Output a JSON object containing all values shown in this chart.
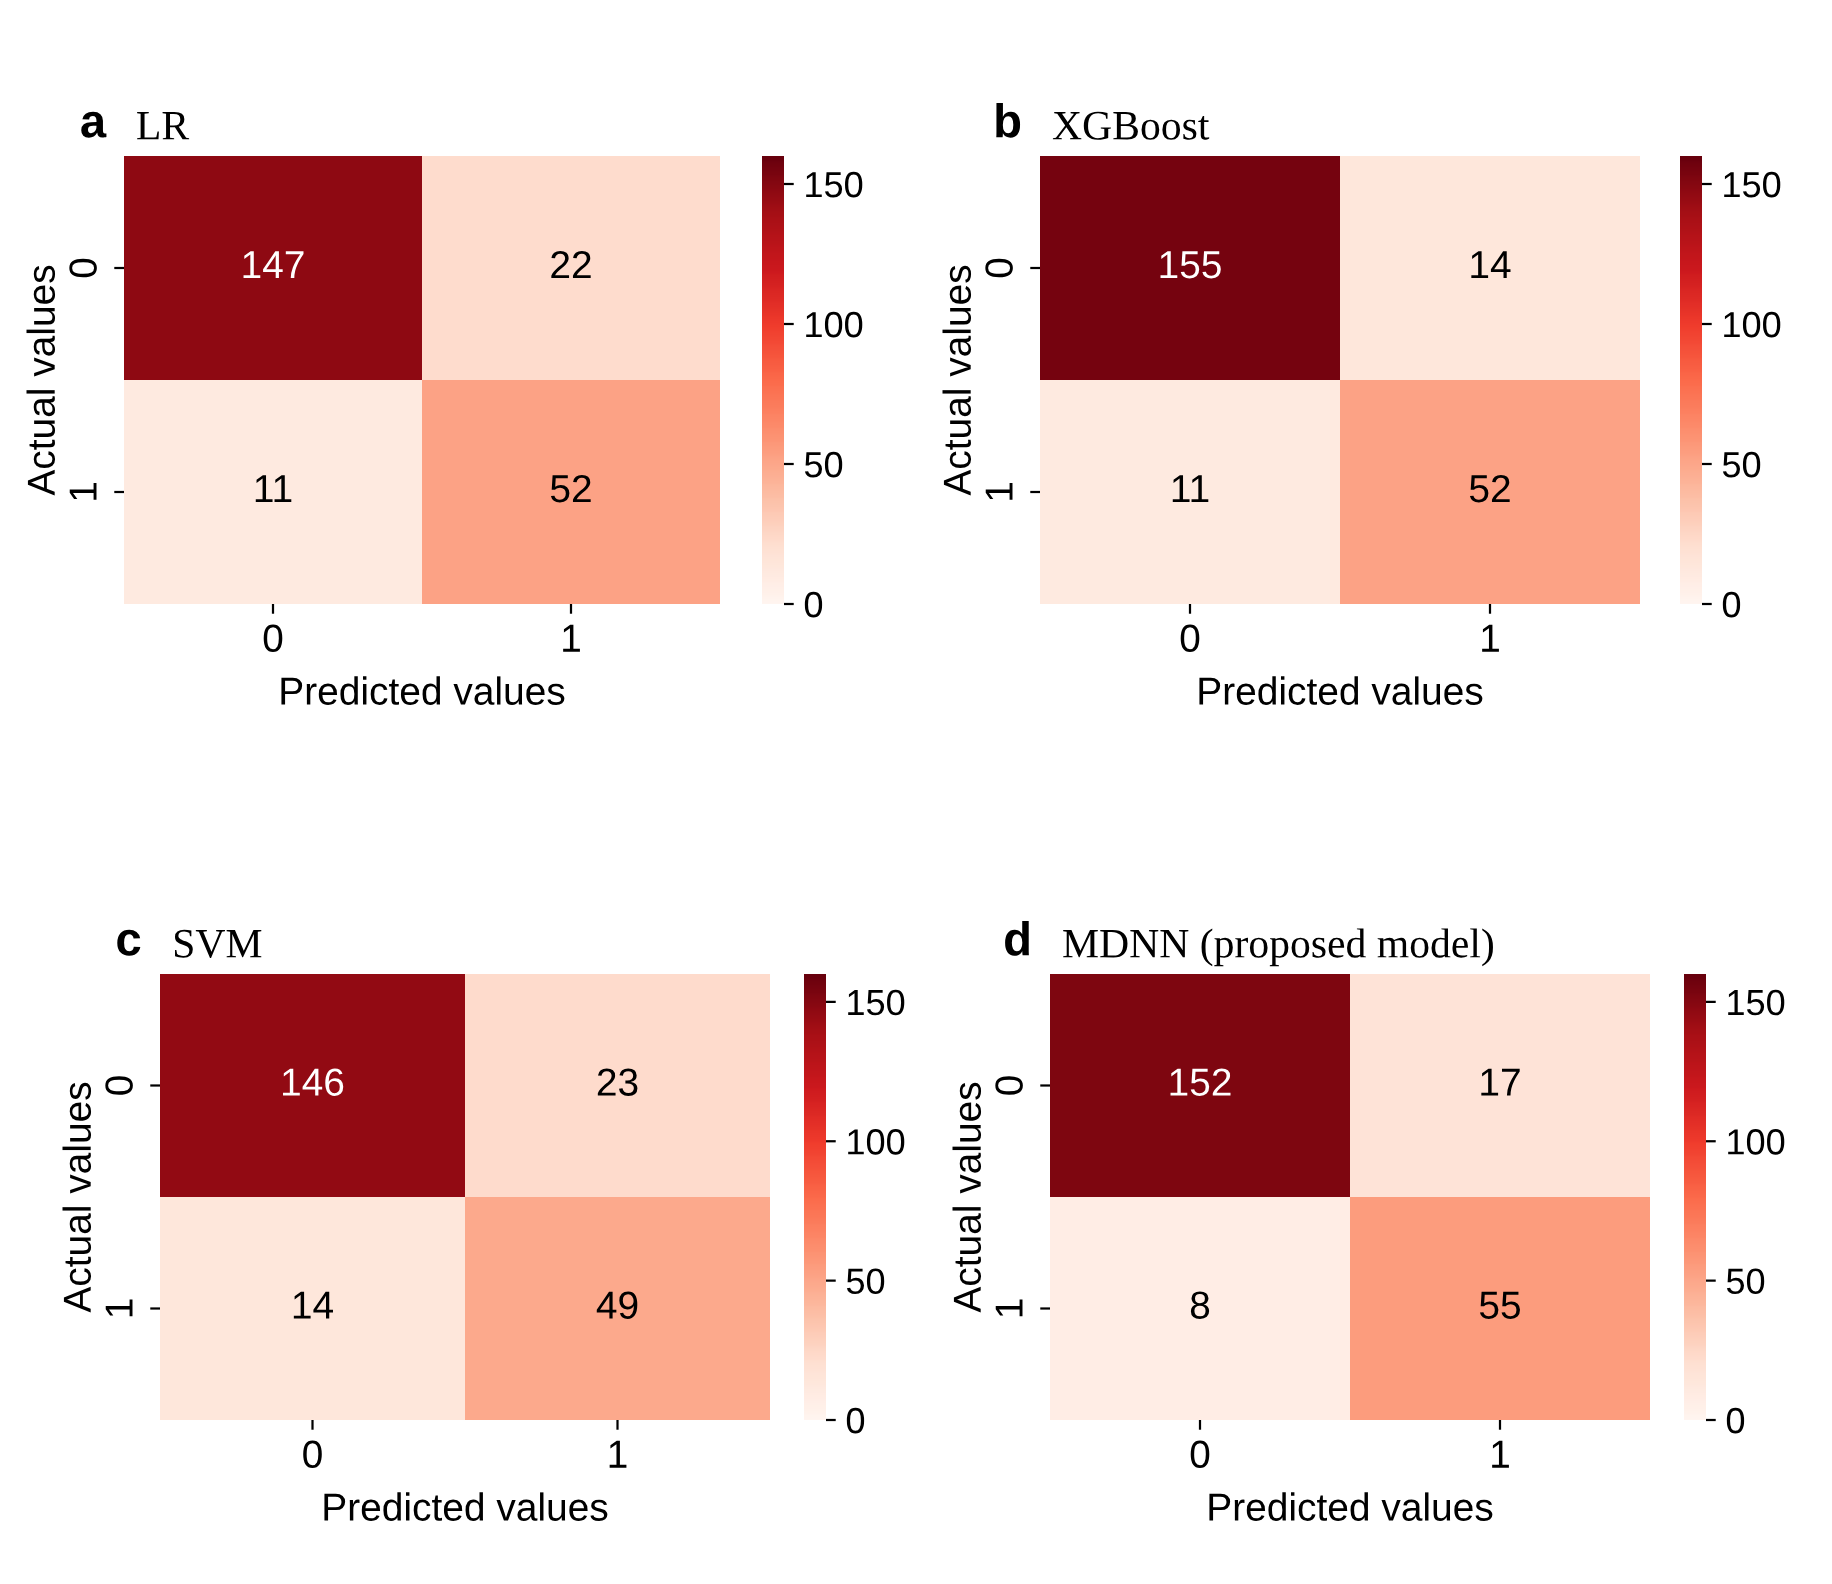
{
  "chart_data": [
    {
      "type": "heatmap",
      "title": "LR",
      "annotations": [
        "a"
      ],
      "xlabel": "Predicted values",
      "ylabel": "Actual values",
      "categories": [
        "0",
        "1"
      ],
      "y_categories": [
        "0",
        "1"
      ],
      "cells": [
        [
          147,
          22
        ],
        [
          11,
          52
        ]
      ],
      "data_labels": true,
      "clim": [
        0,
        160
      ],
      "cticks": [
        0,
        50,
        100,
        150
      ]
    },
    {
      "type": "heatmap",
      "title": "XGBoost",
      "annotations": [
        "b"
      ],
      "xlabel": "Predicted values",
      "ylabel": "Actual values",
      "categories": [
        "0",
        "1"
      ],
      "y_categories": [
        "0",
        "1"
      ],
      "cells": [
        [
          155,
          14
        ],
        [
          11,
          52
        ]
      ],
      "data_labels": true,
      "clim": [
        0,
        160
      ],
      "cticks": [
        0,
        50,
        100,
        150
      ]
    },
    {
      "type": "heatmap",
      "title": "SVM",
      "annotations": [
        "c"
      ],
      "xlabel": "Predicted values",
      "ylabel": "Actual values",
      "categories": [
        "0",
        "1"
      ],
      "y_categories": [
        "0",
        "1"
      ],
      "cells": [
        [
          146,
          23
        ],
        [
          14,
          49
        ]
      ],
      "data_labels": true,
      "clim": [
        0,
        160
      ],
      "cticks": [
        0,
        50,
        100,
        150
      ]
    },
    {
      "type": "heatmap",
      "title": "MDNN (proposed model)",
      "annotations": [
        "d"
      ],
      "xlabel": "Predicted values",
      "ylabel": "Actual values",
      "categories": [
        "0",
        "1"
      ],
      "y_categories": [
        "0",
        "1"
      ],
      "cells": [
        [
          152,
          17
        ],
        [
          8,
          55
        ]
      ],
      "data_labels": true,
      "clim": [
        0,
        160
      ],
      "cticks": [
        0,
        50,
        100,
        150
      ]
    }
  ]
}
